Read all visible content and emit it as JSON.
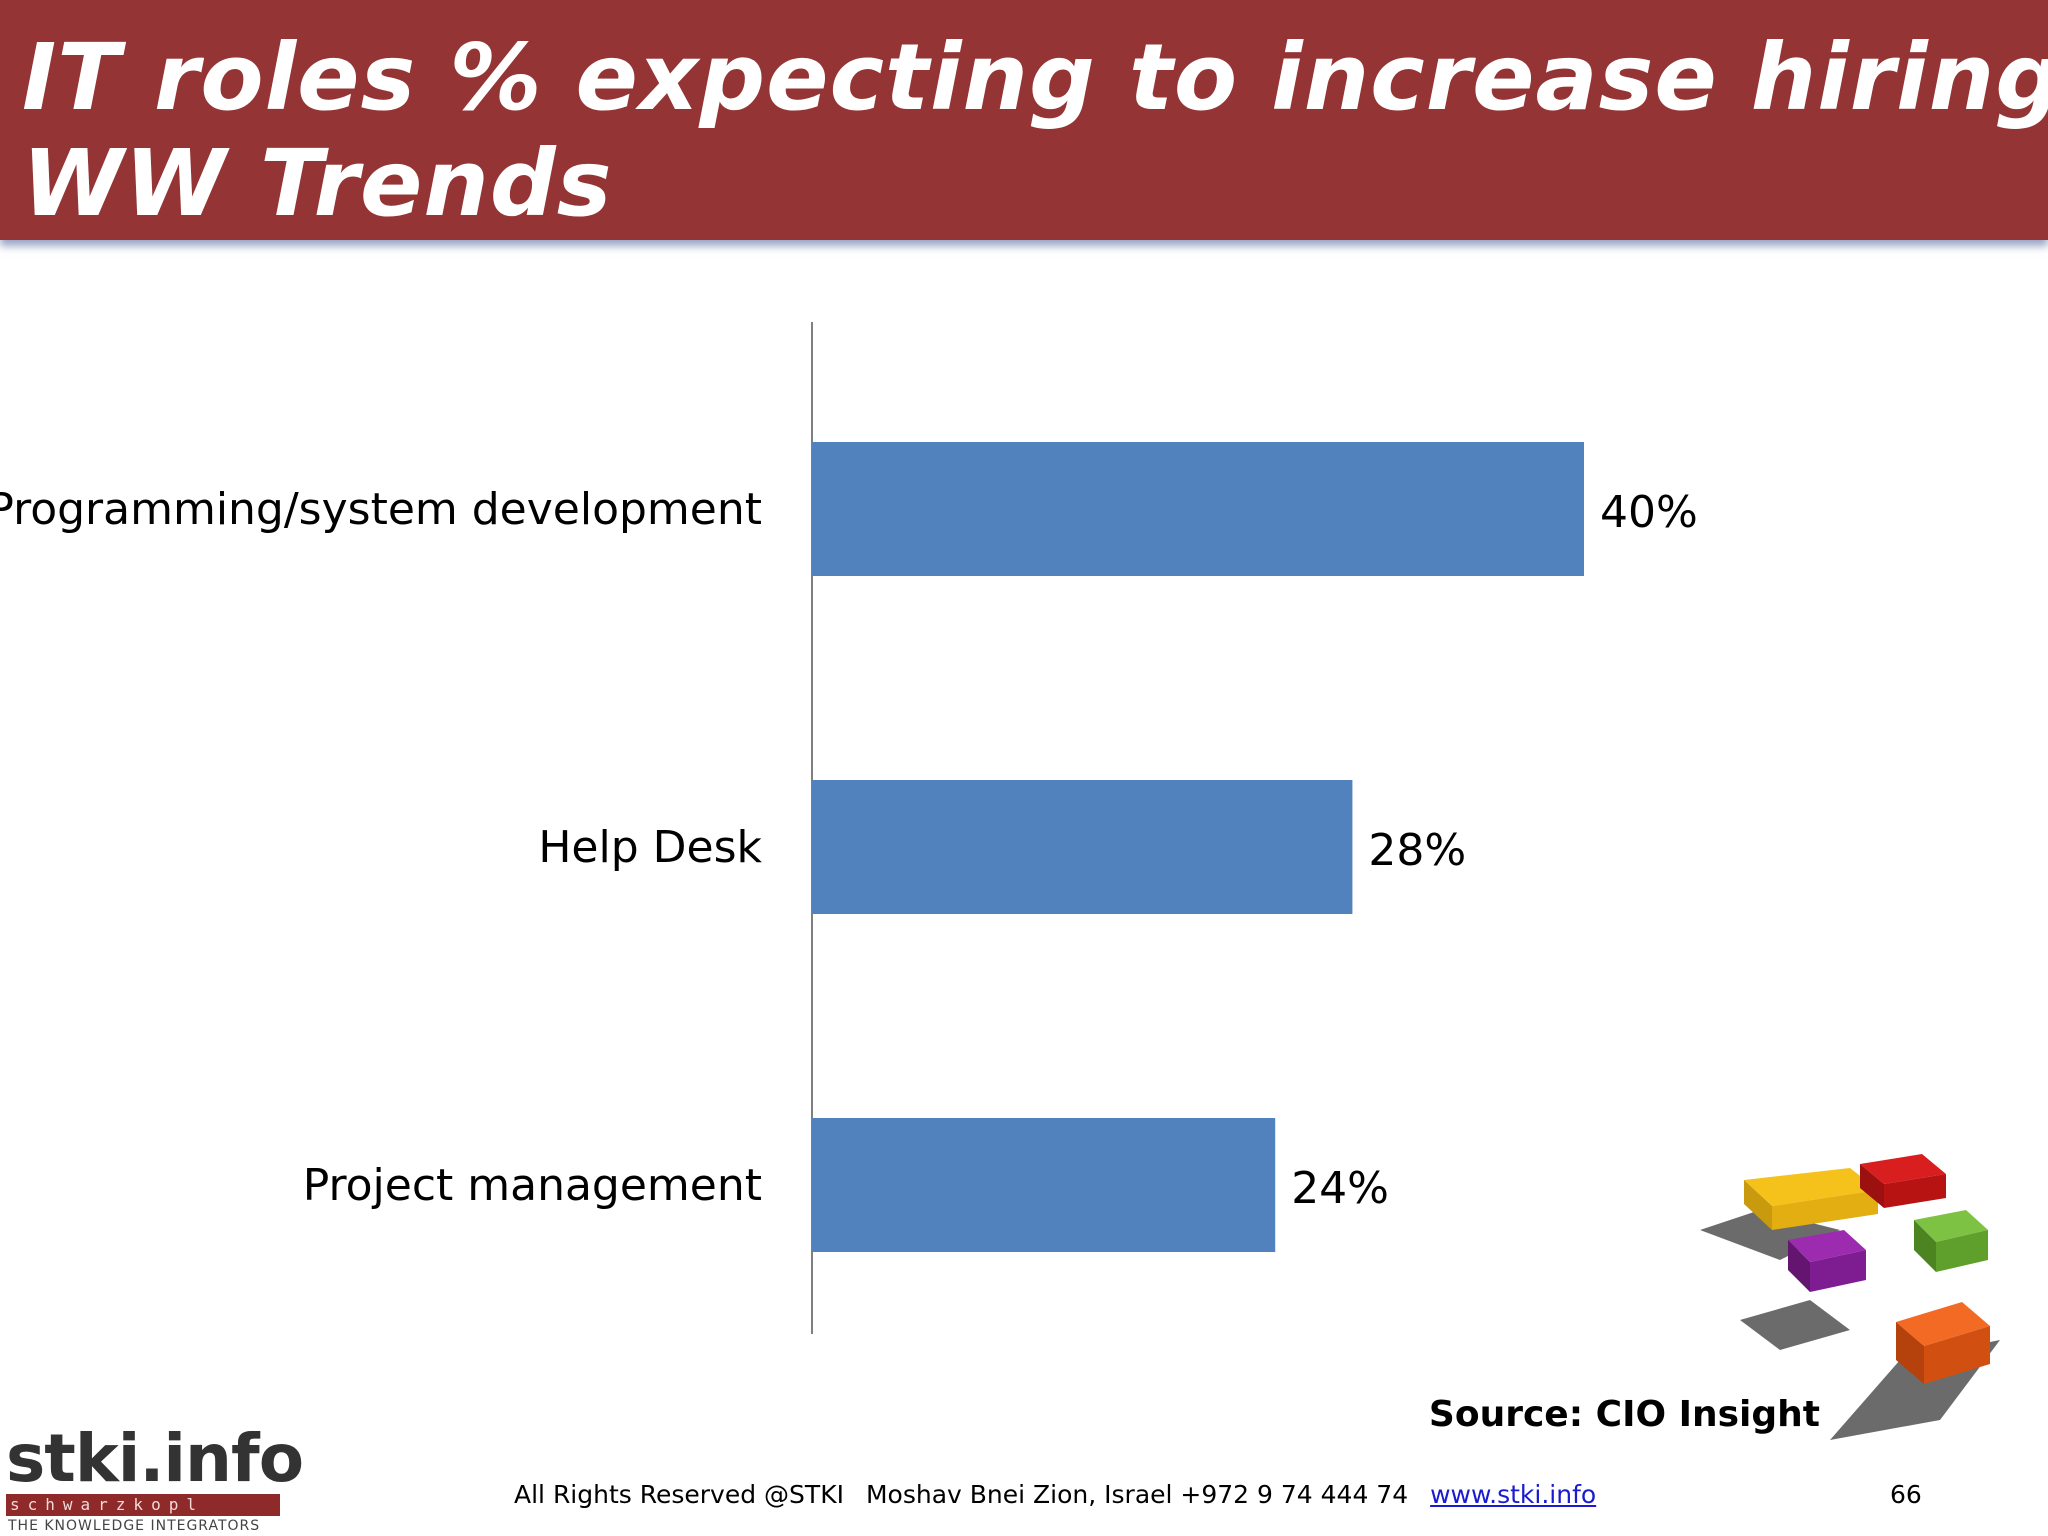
{
  "slide": {
    "title_line1": "IT roles % expecting to increase hiring:",
    "title_line2": "WW Trends"
  },
  "source": "Source: CIO Insight",
  "footer": {
    "rights": "All Rights Reserved @STKI",
    "address": "Moshav Bnei Zion, Israel +972 9 74 444 74",
    "link": "www.stki.info",
    "page_number": "66"
  },
  "logo": {
    "main": "stki.info",
    "strip": "schwarzkopl",
    "tagline": "THE KNOWLEDGE INTEGRATORS"
  },
  "colors": {
    "banner": "#943434",
    "bar": "#5182be",
    "axis": "#808080"
  },
  "chart_data": {
    "type": "bar",
    "orientation": "horizontal",
    "categories": [
      "Programming/system development",
      "Help Desk",
      "Project management"
    ],
    "values": [
      40,
      28,
      24
    ],
    "data_labels": [
      "40%",
      "28%",
      "24%"
    ],
    "unit": "%",
    "xlim": [
      0,
      60
    ],
    "grid": false,
    "legend": "none"
  }
}
